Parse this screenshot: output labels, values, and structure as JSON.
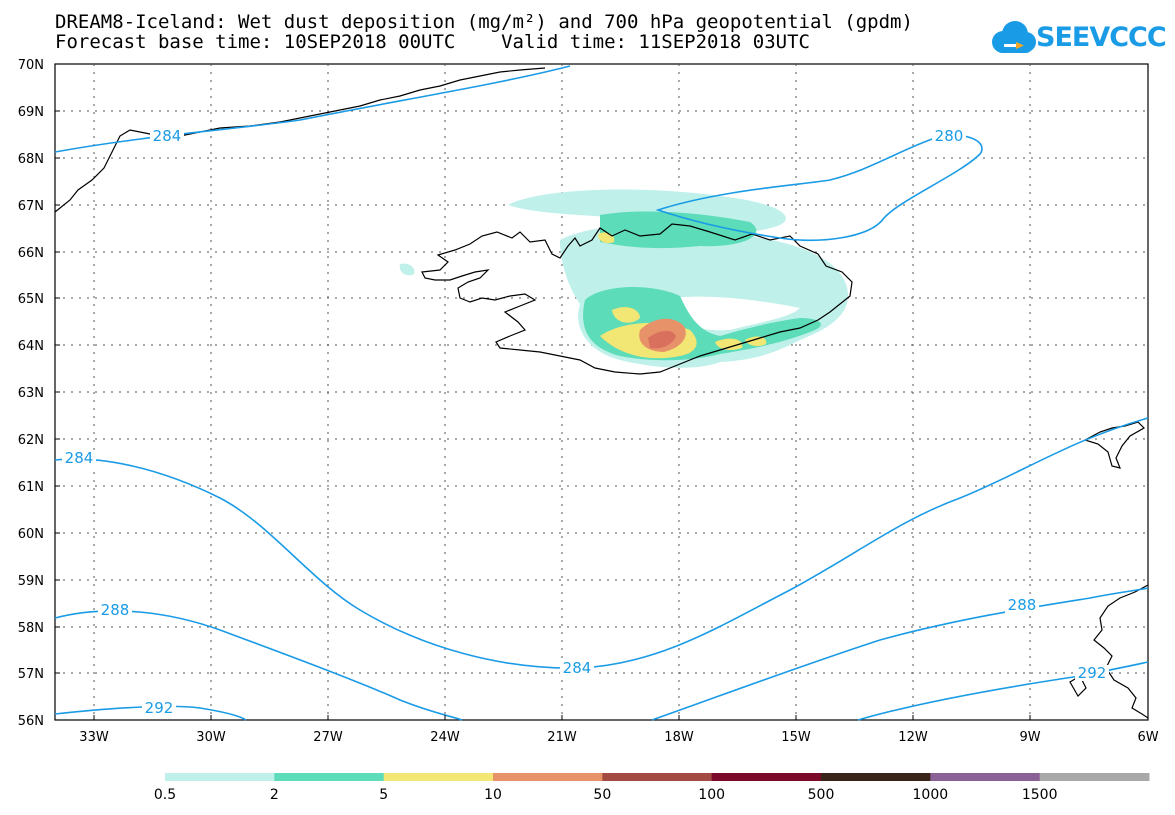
{
  "title": {
    "line1": "DREAM8-Iceland: Wet dust deposition (mg/m²) and 700 hPa geopotential (gpdm)",
    "line2": "Forecast base time: 10SEP2018 00UTC    Valid time: 11SEP2018 03UTC"
  },
  "logo": {
    "text": "SEEVCCC",
    "icon": "cloud-icon",
    "color": "#1a9be6"
  },
  "axes": {
    "lat_labels": [
      "70N",
      "69N",
      "68N",
      "67N",
      "66N",
      "65N",
      "64N",
      "63N",
      "62N",
      "61N",
      "60N",
      "59N",
      "58N",
      "57N",
      "56N"
    ],
    "lon_labels": [
      "33W",
      "30W",
      "27W",
      "24W",
      "21W",
      "18W",
      "15W",
      "12W",
      "9W",
      "6W"
    ],
    "lat_range": [
      56,
      70
    ],
    "lon_range": [
      -34,
      -6
    ],
    "grid": "dotted"
  },
  "contours": {
    "color": "#1a9be6",
    "labels": [
      "284",
      "280",
      "284",
      "288",
      "284",
      "288",
      "292",
      "292"
    ]
  },
  "colorbar": {
    "colors": [
      "#bff0ea",
      "#5cdcb8",
      "#f2e675",
      "#e8926a",
      "#a34b43",
      "#7a0a28",
      "#3a2318",
      "#8a6196",
      "#a8a8a8"
    ],
    "labels": [
      "0.5",
      "2",
      "5",
      "10",
      "50",
      "100",
      "500",
      "1000",
      "1500"
    ]
  }
}
